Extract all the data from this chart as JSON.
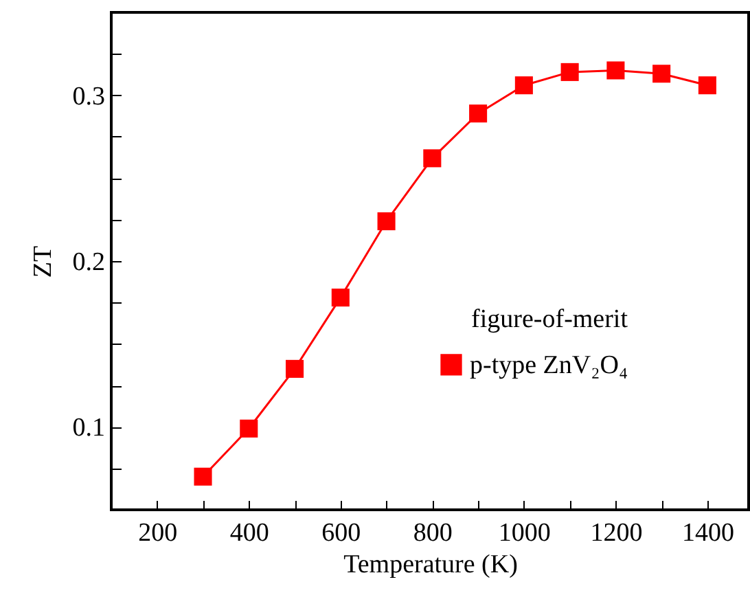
{
  "chart_data": {
    "type": "line",
    "xlabel": "Temperature (K)",
    "ylabel": "ZT",
    "legend_title": "figure-of-merit",
    "x": [
      300,
      400,
      500,
      600,
      700,
      800,
      900,
      1000,
      1100,
      1200,
      1300,
      1400
    ],
    "series": [
      {
        "name": "p-type ZnV₂O₄",
        "color": "#ff0000",
        "values": [
          0.07,
          0.099,
          0.135,
          0.178,
          0.224,
          0.262,
          0.289,
          0.306,
          0.314,
          0.315,
          0.313,
          0.306
        ]
      }
    ],
    "xlim": [
      100,
      1490
    ],
    "xticks": [
      {
        "value": 100,
        "label": null
      },
      200,
      {
        "value": 300,
        "label": null
      },
      400,
      {
        "value": 500,
        "label": null
      },
      600,
      {
        "value": 700,
        "label": null
      },
      800,
      {
        "value": 900,
        "label": null
      },
      1000,
      {
        "value": 1100,
        "label": null
      },
      1200,
      {
        "value": 1300,
        "label": null
      },
      1400
    ],
    "ylim": [
      0.05,
      0.35
    ],
    "yticks": [
      {
        "value": 0.075,
        "label": null
      },
      0.1,
      {
        "value": 0.125,
        "label": null
      },
      {
        "value": 0.15,
        "label": null
      },
      {
        "value": 0.175,
        "label": null
      },
      0.2,
      {
        "value": 0.225,
        "label": null
      },
      {
        "value": 0.25,
        "label": null
      },
      {
        "value": 0.275,
        "label": null
      },
      0.3,
      {
        "value": 0.325,
        "label": null
      }
    ],
    "grid": false,
    "legend": "right",
    "marker": "square",
    "line_style": "solid"
  }
}
